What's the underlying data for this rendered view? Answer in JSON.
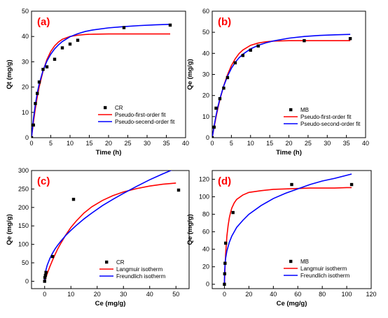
{
  "colors": {
    "axis": "#000000",
    "points": "#000000",
    "red_fit": "#ff0000",
    "blue_fit": "#0000ff",
    "panel_label": "#ff0000",
    "background": "#ffffff"
  },
  "chart_data": [
    {
      "id": "a",
      "type": "scatter",
      "panel_label": "(a)",
      "xlabel": "Time (h)",
      "ylabel": "Qt (mg/g)",
      "xlim": [
        0,
        40
      ],
      "ylim": [
        0,
        50
      ],
      "xticks": [
        0,
        5,
        10,
        15,
        20,
        25,
        30,
        35,
        40
      ],
      "yticks": [
        0,
        10,
        20,
        30,
        40,
        50
      ],
      "legend_position": "bottom-right",
      "series": [
        {
          "name": "CR",
          "kind": "points",
          "x": [
            0,
            0.5,
            1,
            1.5,
            2,
            3,
            4,
            6,
            8,
            10,
            12,
            24,
            36
          ],
          "y": [
            0,
            5,
            13.5,
            17.5,
            22,
            27,
            28,
            31,
            35.5,
            37,
            38.5,
            43.5,
            44.5
          ]
        },
        {
          "name": "Pseudo-first-order fit",
          "kind": "line",
          "color": "#ff0000",
          "x": [
            0,
            0.5,
            1,
            1.5,
            2,
            3,
            4,
            5,
            6,
            7,
            8,
            10,
            12,
            14,
            16,
            20,
            24,
            28,
            32,
            36
          ],
          "y": [
            0,
            6.2,
            11.6,
            16.2,
            20.1,
            26.4,
            30.9,
            34.1,
            36.3,
            37.8,
            38.9,
            40.0,
            40.5,
            40.8,
            40.9,
            41.0,
            41.0,
            41.0,
            41.0,
            41.0
          ]
        },
        {
          "name": "Pseudo-secend-order fit",
          "kind": "line",
          "color": "#0000ff",
          "x": [
            0,
            0.5,
            1,
            1.5,
            2,
            3,
            4,
            5,
            6,
            7,
            8,
            10,
            12,
            14,
            16,
            20,
            24,
            28,
            32,
            36
          ],
          "y": [
            0,
            7.5,
            13.2,
            17.7,
            21.3,
            26.6,
            30.3,
            33.0,
            35.1,
            36.7,
            38.0,
            39.9,
            41.1,
            42.0,
            42.6,
            43.4,
            43.9,
            44.3,
            44.6,
            44.8
          ]
        }
      ]
    },
    {
      "id": "b",
      "type": "scatter",
      "panel_label": "(b)",
      "xlabel": "Time (h)",
      "ylabel": "Qe (mg/g)",
      "xlim": [
        0,
        40
      ],
      "ylim": [
        0,
        60
      ],
      "xticks": [
        0,
        5,
        10,
        15,
        20,
        25,
        30,
        35,
        40
      ],
      "yticks": [
        0,
        10,
        20,
        30,
        40,
        50,
        60
      ],
      "legend_position": "bottom-right",
      "series": [
        {
          "name": "MB",
          "kind": "points",
          "x": [
            0,
            0.5,
            1,
            2,
            3,
            4,
            6,
            8,
            10,
            12,
            24,
            36
          ],
          "y": [
            0,
            5,
            14,
            18.5,
            23.5,
            28.5,
            35.5,
            39,
            41.5,
            43.5,
            46,
            47
          ]
        },
        {
          "name": "Pseudo-first-order fit",
          "kind": "line",
          "color": "#ff0000",
          "x": [
            0,
            0.5,
            1,
            1.5,
            2,
            3,
            4,
            5,
            6,
            7,
            8,
            10,
            12,
            14,
            16,
            20,
            24,
            28,
            32,
            36
          ],
          "y": [
            0,
            5.1,
            9.8,
            14.1,
            18.0,
            24.6,
            29.9,
            34.2,
            37.4,
            39.9,
            41.6,
            43.8,
            44.9,
            45.5,
            45.8,
            46.0,
            46.0,
            46.0,
            46.0,
            46.0
          ]
        },
        {
          "name": "Pseudo-second-order fit",
          "kind": "line",
          "color": "#0000ff",
          "x": [
            0,
            0.5,
            1,
            1.5,
            2,
            3,
            4,
            5,
            6,
            7,
            8,
            10,
            12,
            14,
            16,
            20,
            24,
            28,
            32,
            36
          ],
          "y": [
            0,
            5.6,
            10.5,
            14.8,
            18.5,
            24.5,
            29.2,
            32.9,
            35.7,
            37.9,
            39.6,
            42.1,
            43.8,
            45.0,
            45.9,
            47.2,
            48.0,
            48.5,
            48.8,
            49.0
          ]
        }
      ]
    },
    {
      "id": "c",
      "type": "scatter",
      "panel_label": "(c)",
      "xlabel": "Ce (mg/g)",
      "ylabel": "Qe (mg/g)",
      "xlim": [
        -5,
        55
      ],
      "ylim": [
        -20,
        300
      ],
      "xticks": [
        0,
        10,
        20,
        30,
        40,
        50
      ],
      "yticks": [
        0,
        50,
        100,
        150,
        200,
        250,
        300
      ],
      "legend_position": "bottom-right",
      "series": [
        {
          "name": "CR",
          "kind": "points",
          "x": [
            0,
            0.1,
            0.3,
            0.5,
            3,
            11,
            51
          ],
          "y": [
            0,
            10,
            16,
            24,
            67,
            222,
            247
          ]
        },
        {
          "name": "Langmuir isotherm",
          "kind": "line",
          "color": "#ff0000",
          "x": [
            0,
            0.5,
            1,
            2,
            3,
            4,
            5,
            6,
            8,
            10,
            12,
            15,
            18,
            22,
            26,
            30,
            35,
            40,
            45,
            50
          ],
          "y": [
            0,
            11,
            21,
            40,
            57,
            73,
            88,
            101,
            125,
            146,
            163,
            185,
            202,
            219,
            232,
            242,
            251,
            258,
            263,
            266
          ]
        },
        {
          "name": "Freundlich isotherm",
          "kind": "line",
          "color": "#0000ff",
          "x": [
            0,
            0.1,
            0.25,
            0.5,
            1,
            2,
            3,
            4,
            5,
            6,
            8,
            10,
            12,
            15,
            18,
            22,
            26,
            30,
            35,
            40,
            45,
            50
          ],
          "y": [
            0,
            12,
            21,
            31,
            44,
            62,
            76,
            88,
            98,
            107,
            124,
            138,
            151,
            169,
            185,
            205,
            222,
            238,
            257,
            275,
            291,
            306
          ]
        }
      ]
    },
    {
      "id": "d",
      "type": "scatter",
      "panel_label": "(d)",
      "xlabel": "Ce (mg/g)",
      "ylabel": "Qe (mg/g)",
      "xlim": [
        -10,
        120
      ],
      "ylim": [
        -5,
        130
      ],
      "xticks": [
        0,
        20,
        40,
        60,
        80,
        100,
        120
      ],
      "yticks": [
        0,
        20,
        40,
        60,
        80,
        100,
        120
      ],
      "legend_position": "bottom-right",
      "series": [
        {
          "name": "MB",
          "kind": "points",
          "x": [
            0,
            0.2,
            0.5,
            1,
            7,
            55,
            104
          ],
          "y": [
            0,
            12,
            24,
            47,
            82,
            114,
            114
          ]
        },
        {
          "name": "Langmuir isotherm",
          "kind": "line",
          "color": "#ff0000",
          "x": [
            0,
            0.5,
            1,
            2,
            3,
            4,
            5,
            6,
            8,
            10,
            15,
            20,
            30,
            40,
            50,
            60,
            70,
            80,
            90,
            100,
            104
          ],
          "y": [
            0,
            20,
            35,
            55,
            67,
            76,
            82,
            87,
            93,
            97,
            102,
            105,
            107,
            108.5,
            109,
            109.5,
            110,
            110,
            110,
            110.5,
            110.5
          ]
        },
        {
          "name": "Freundlich isotherm",
          "kind": "line",
          "color": "#0000ff",
          "x": [
            0,
            0.1,
            0.5,
            1,
            2,
            4,
            6,
            8,
            10,
            15,
            20,
            30,
            40,
            50,
            60,
            70,
            80,
            90,
            104
          ],
          "y": [
            0,
            12,
            23,
            30,
            38,
            48,
            55,
            60,
            65,
            73,
            80,
            90,
            98,
            104,
            109,
            114,
            118,
            121,
            126
          ]
        }
      ]
    }
  ]
}
